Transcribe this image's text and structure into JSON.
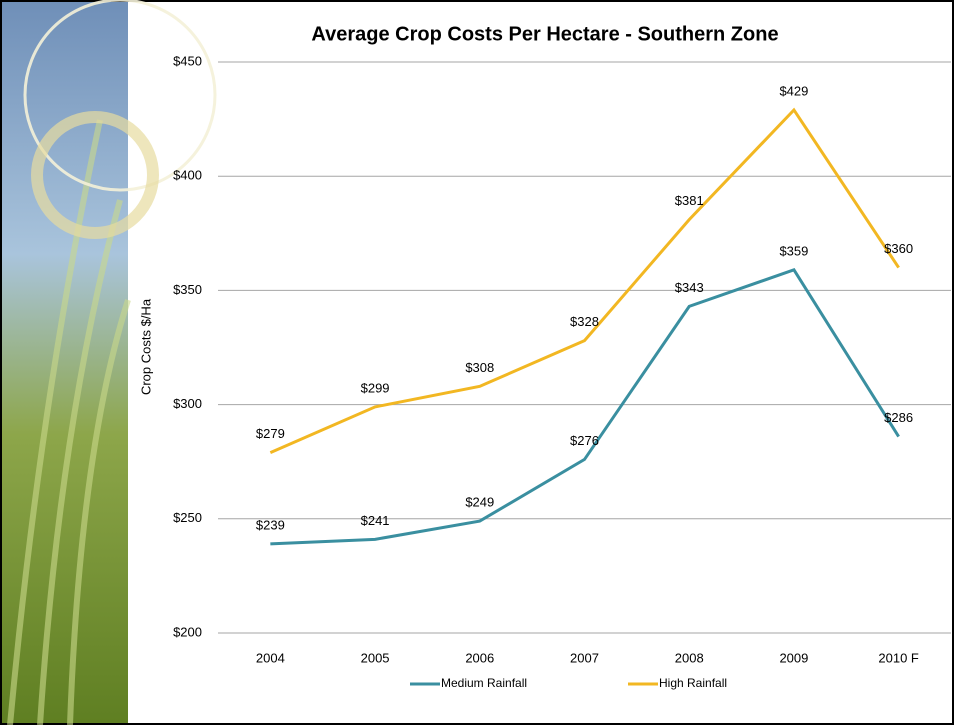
{
  "chart_data": {
    "type": "line",
    "title": "Average Crop Costs Per Hectare - Southern Zone",
    "y_label": "Crop Costs $/Ha",
    "categories": [
      "2004",
      "2005",
      "2006",
      "2007",
      "2008",
      "2009",
      "2010 F"
    ],
    "series": [
      {
        "name": "Medium Rainfall",
        "color": "#3a8fa0",
        "values": [
          239,
          241,
          249,
          276,
          343,
          359,
          286
        ],
        "value_labels": [
          "$239",
          "$241",
          "$249",
          "$276",
          "$343",
          "$359",
          "$286"
        ]
      },
      {
        "name": "High Rainfall",
        "color": "#f2b722",
        "values": [
          279,
          299,
          308,
          328,
          381,
          429,
          360
        ],
        "value_labels": [
          "$279",
          "$299",
          "$308",
          "$328",
          "$381",
          "$429",
          "$360"
        ]
      }
    ],
    "ylim": [
      200,
      450
    ],
    "yticks": [
      {
        "value": 200,
        "label": "$200"
      },
      {
        "value": 250,
        "label": "$250"
      },
      {
        "value": 300,
        "label": "$300"
      },
      {
        "value": 350,
        "label": "$350"
      },
      {
        "value": 400,
        "label": "$400"
      },
      {
        "value": 450,
        "label": "$450"
      }
    ],
    "grid": true,
    "legend": "bottom"
  }
}
